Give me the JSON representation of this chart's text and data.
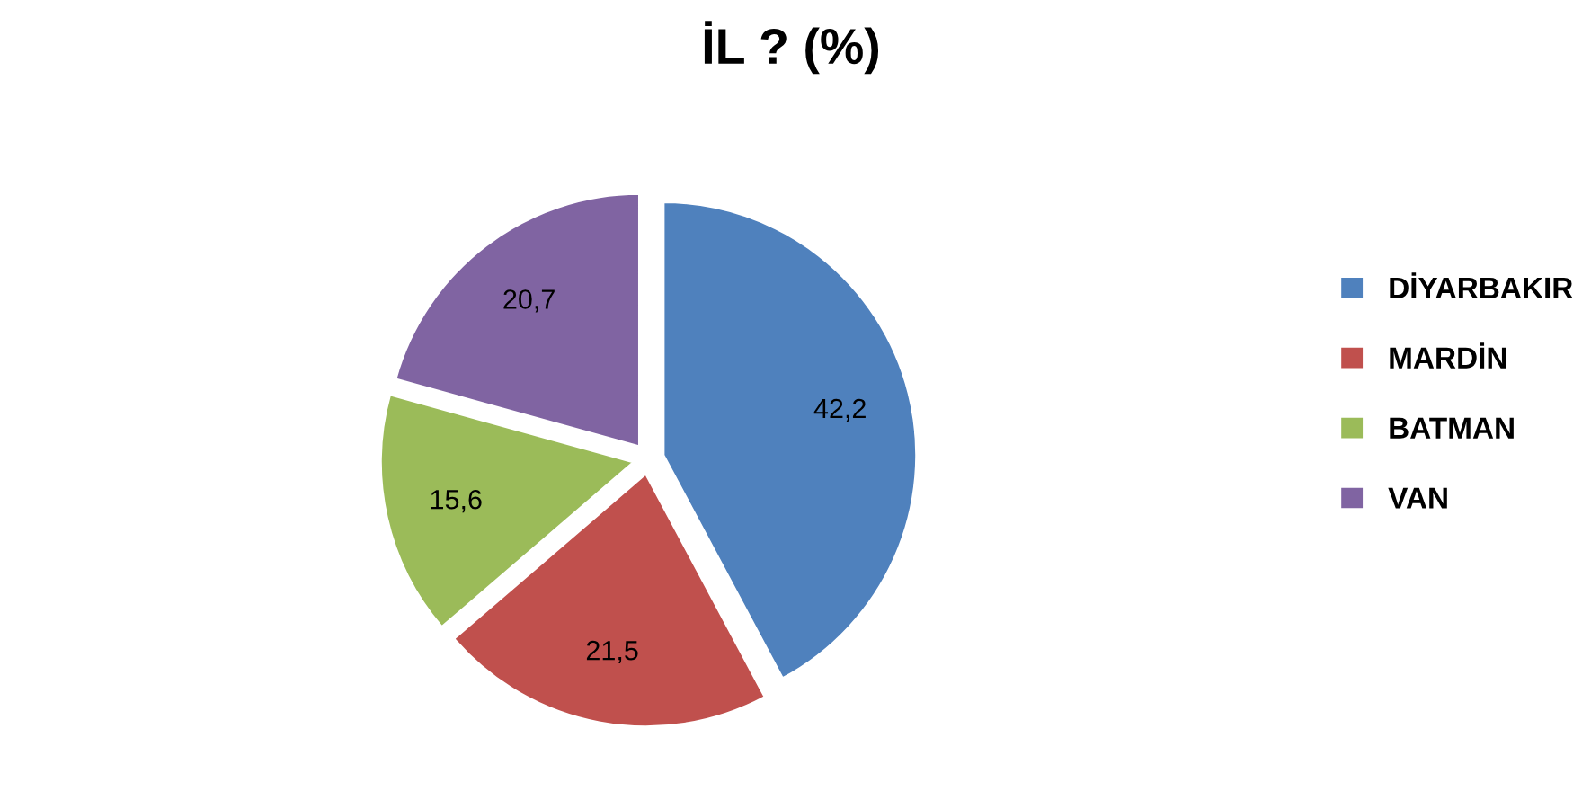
{
  "chart_data": {
    "type": "pie",
    "title": "İL ? (%)",
    "categories": [
      "DİYARBAKIR",
      "MARDİN",
      "BATMAN",
      "VAN"
    ],
    "values": [
      42.2,
      21.5,
      15.6,
      20.7
    ],
    "colors": [
      "#4f81bd",
      "#c0504d",
      "#9bbb59",
      "#8064a2"
    ],
    "value_labels": [
      "42,2",
      "21,5",
      "15,6",
      "20,7"
    ],
    "legend": "right"
  }
}
